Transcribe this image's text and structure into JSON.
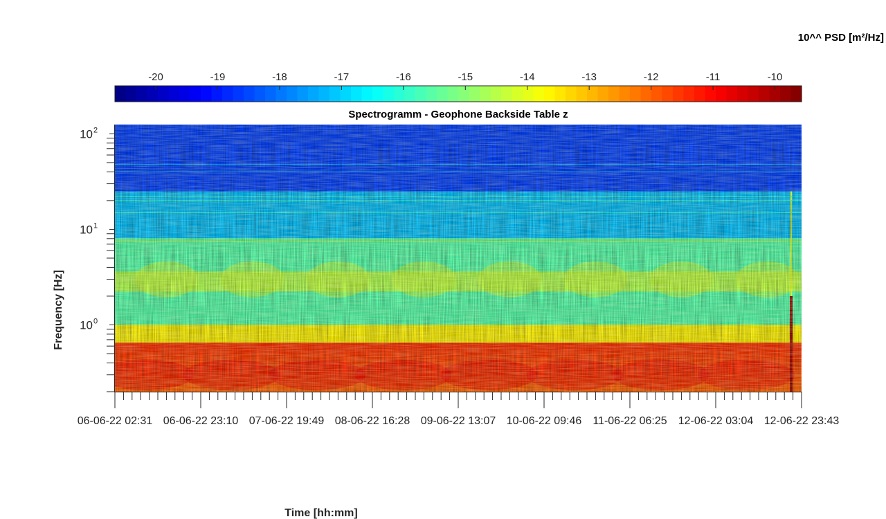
{
  "chart_data": {
    "type": "heatmap",
    "title": "Spectrogramm - Geophone Backside Table z",
    "xlabel": "Time [hh:mm]",
    "ylabel": "Frequency [Hz]",
    "x_tick_labels": [
      "06-06-22 02:31",
      "06-06-22 23:10",
      "07-06-22 19:49",
      "08-06-22 16:28",
      "09-06-22 13:07",
      "10-06-22 09:46",
      "11-06-22 06:25",
      "12-06-22 03:04",
      "12-06-22 23:43"
    ],
    "y_scale": "log",
    "y_tick_labels": [
      {
        "value": 1,
        "base": "10",
        "exp": "0"
      },
      {
        "value": 10,
        "base": "10",
        "exp": "1"
      },
      {
        "value": 100,
        "base": "10",
        "exp": "2"
      }
    ],
    "ylim": [
      0.2,
      125
    ],
    "colorbar": {
      "label": "10^^ PSD [m²/Hz]",
      "colormap": "jet",
      "ticks": [
        -20,
        -19,
        -18,
        -17,
        -16,
        -15,
        -14,
        -13,
        -12,
        -11,
        -10
      ],
      "range": [
        -20.66,
        -9.57
      ]
    },
    "grid": false,
    "features": [
      {
        "freq_range_hz": [
          0.2,
          0.65
        ],
        "log10_psd": -11.5
      },
      {
        "freq_range_hz": [
          0.65,
          1.0
        ],
        "log10_psd": -13.5
      },
      {
        "freq_range_hz": [
          1.0,
          8
        ],
        "log10_psd": -15.5
      },
      {
        "freq_range_hz": [
          2.5,
          4
        ],
        "log10_psd": -14.5
      },
      {
        "freq_range_hz": [
          8,
          25
        ],
        "log10_psd": -17
      },
      {
        "freq_range_hz": [
          25,
          125
        ],
        "log10_psd": -18.5
      }
    ]
  }
}
